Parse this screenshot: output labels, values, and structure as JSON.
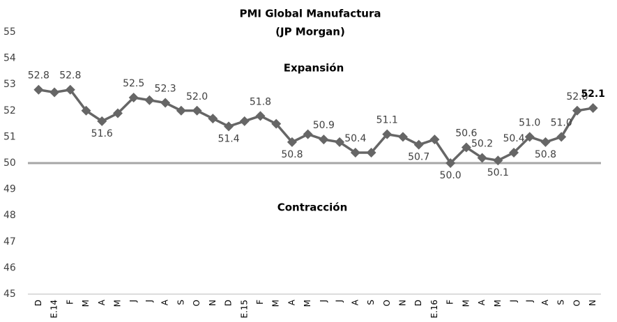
{
  "chart_data": {
    "type": "line",
    "title": "PMI Global Manufactura",
    "subtitle": "(JP Morgan)",
    "annotations": [
      "Expansión",
      "Contracción"
    ],
    "categories": [
      "D",
      "E.14",
      "F",
      "M",
      "A",
      "M",
      "J",
      "J",
      "A",
      "S",
      "O",
      "N",
      "D",
      "E.15",
      "F",
      "M",
      "A",
      "M",
      "J",
      "J",
      "A",
      "S",
      "O",
      "N",
      "D",
      "E.16",
      "F",
      "M",
      "A",
      "M",
      "J",
      "J",
      "A",
      "S",
      "O",
      "N"
    ],
    "series": [
      {
        "name": "PMI",
        "color": "#666666",
        "values": [
          52.8,
          52.7,
          52.8,
          52.0,
          51.6,
          51.9,
          52.5,
          52.4,
          52.3,
          52.0,
          52.0,
          51.7,
          51.4,
          51.6,
          51.8,
          51.5,
          50.8,
          51.1,
          50.9,
          50.8,
          50.4,
          50.4,
          51.1,
          51.0,
          50.7,
          50.9,
          50.0,
          50.6,
          50.2,
          50.1,
          50.4,
          51.0,
          50.8,
          51.0,
          52.0,
          52.1
        ],
        "value_labels": [
          "52.8",
          null,
          "52.8",
          null,
          "51.6",
          null,
          "52.5",
          null,
          "52.3",
          null,
          "52.0",
          null,
          "51.4",
          null,
          "51.8",
          null,
          "50.8",
          null,
          "50.9",
          null,
          "50.4",
          null,
          "51.1",
          null,
          "50.7",
          null,
          "50.0",
          "50.6",
          "50.2",
          "50.1",
          "50.4",
          "51.0",
          "50.8",
          "51.0",
          "52.0",
          "52.1"
        ]
      }
    ],
    "reference_line": 50,
    "ylim": [
      45,
      55
    ],
    "yticks": [
      45,
      46,
      47,
      48,
      49,
      50,
      51,
      52,
      53,
      54,
      55
    ],
    "grid": false
  }
}
